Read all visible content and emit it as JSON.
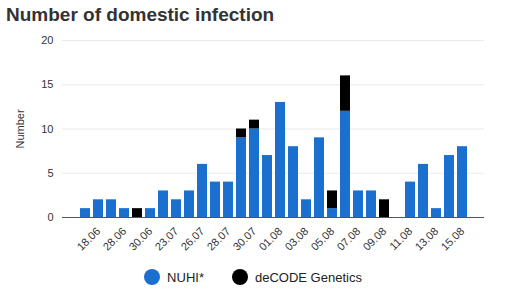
{
  "chart_data": {
    "type": "bar",
    "title": "Number of domestic infection",
    "ylabel": "Number",
    "categories": [
      null,
      "18.06",
      null,
      "28.06",
      null,
      "30.06",
      null,
      "23.07",
      null,
      "26.07",
      null,
      "28.07",
      null,
      "30.07",
      null,
      "01.08",
      null,
      "03.08",
      null,
      "05.08",
      null,
      "07.08",
      null,
      "09.08",
      null,
      "11.08",
      null,
      "13.08",
      null,
      "15.08"
    ],
    "series": [
      {
        "name": "NUHI*",
        "color": "#1a6fcf",
        "values": [
          1,
          2,
          2,
          1,
          0,
          1,
          3,
          2,
          3,
          6,
          4,
          4,
          9,
          10,
          7,
          13,
          8,
          2,
          9,
          1,
          12,
          3,
          3,
          0,
          0,
          4,
          6,
          1,
          7,
          8
        ]
      },
      {
        "name": "deCODE Genetics",
        "color": "#000000",
        "values": [
          0,
          0,
          0,
          0,
          1,
          0,
          0,
          0,
          0,
          0,
          0,
          0,
          1,
          1,
          0,
          0,
          0,
          0,
          0,
          2,
          4,
          0,
          0,
          2,
          0,
          0,
          0,
          0,
          0,
          0
        ]
      }
    ],
    "stacked": true,
    "ylim": [
      0,
      20
    ],
    "yticks": [
      0,
      5,
      10,
      15,
      20
    ],
    "grid": true,
    "legend": "bottom"
  }
}
